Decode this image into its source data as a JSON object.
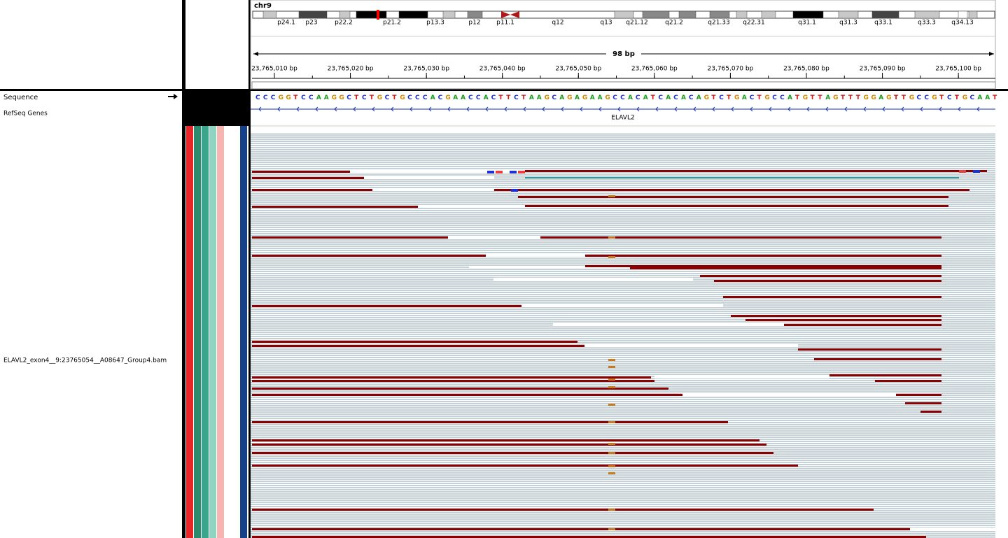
{
  "header": {
    "chromosome": "chr9",
    "bands": [
      "p24.1",
      "p23",
      "p22.2",
      "p21.2",
      "p13.3",
      "p12",
      "p11.1",
      "q12",
      "q13",
      "q21.12",
      "q21.2",
      "q21.33",
      "q22.31",
      "q31.1",
      "q31.3",
      "q33.1",
      "q33.3",
      "q34.13"
    ],
    "span": "98 bp",
    "positions": [
      "23,765,010 bp",
      "23,765,020 bp",
      "23,765,030 bp",
      "23,765,040 bp",
      "23,765,050 bp",
      "23,765,060 bp",
      "23,765,070 bp",
      "23,765,080 bp",
      "23,765,090 bp",
      "23,765,100 bp"
    ]
  },
  "tracks": {
    "sequence": {
      "name": "Sequence",
      "bases": "CCCGGTCCAAGGCTCTGCTGCCCACGAACCACTTCTAAGCAGAGAAGCCACATCACACAGTCTGACTGCCATGTTAGTTTGGAGTTGCCGTCTGCAAT"
    },
    "genes": {
      "name": "RefSeq Genes",
      "gene": "ELAVL2"
    },
    "alignment": {
      "name": "ELAVL2_exon4__9:23765054__A08647_Group4.bam"
    }
  }
}
